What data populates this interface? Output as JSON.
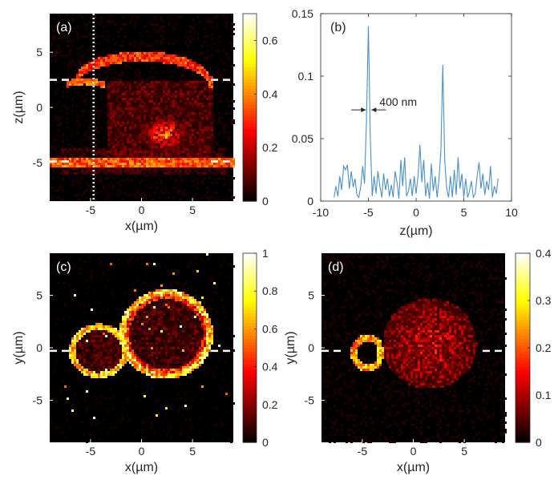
{
  "chart_data": [
    {
      "id": "a",
      "type": "heatmap",
      "panel_label": "(a)",
      "xlabel": "x(µm)",
      "ylabel": "z(µm)",
      "xlim": [
        -9,
        9
      ],
      "ylim": [
        -8.5,
        8.5
      ],
      "xticks": [
        -5,
        0,
        5
      ],
      "xtick_labels": [
        "-5",
        "0",
        "5"
      ],
      "yticks": [
        5,
        0,
        -5
      ],
      "ytick_labels": [
        "5",
        "0",
        "-5"
      ],
      "colormap": "hot",
      "clim": [
        0,
        0.7
      ],
      "colorbar_ticks": [
        0,
        0.2,
        0.4,
        0.6
      ],
      "colorbar_tick_labels": [
        "0",
        "0.2",
        "0.4",
        "0.6"
      ],
      "dashed_lines_z": [
        2.5,
        -4.9
      ],
      "dotted_line_x": -4.7,
      "background_color": "#000000",
      "line_color": "#ffffff"
    },
    {
      "id": "b",
      "type": "line",
      "panel_label": "(b)",
      "xlabel": "z(µm)",
      "ylabel": "",
      "xlim": [
        -10,
        10
      ],
      "ylim": [
        0,
        0.15
      ],
      "xticks": [
        -10,
        -5,
        0,
        5,
        10
      ],
      "xtick_labels": [
        "-10",
        "-5",
        "0",
        "5",
        "10"
      ],
      "yticks": [
        0,
        0.05,
        0.1,
        0.15
      ],
      "ytick_labels": [
        "0",
        "0.05",
        "0.1",
        "0.15"
      ],
      "color": "#4a90c9",
      "annotation": "400 nm",
      "annotation_x": -5.1,
      "annotation_y": 0.073,
      "series": [
        {
          "x": [
            -8.6,
            -8.4,
            -8.2,
            -8.0,
            -7.8,
            -7.6,
            -7.4,
            -7.2,
            -7.0,
            -6.8,
            -6.6,
            -6.4,
            -6.2,
            -6.0,
            -5.8,
            -5.6,
            -5.4,
            -5.2,
            -5.0,
            -4.8,
            -4.6,
            -4.4,
            -4.2,
            -4.0,
            -3.8,
            -3.6,
            -3.4,
            -3.2,
            -3.0,
            -2.8,
            -2.6,
            -2.4,
            -2.2,
            -2.0,
            -1.8,
            -1.6,
            -1.4,
            -1.2,
            -1.0,
            -0.8,
            -0.6,
            -0.4,
            -0.2,
            0.0,
            0.2,
            0.4,
            0.6,
            0.8,
            1.0,
            1.2,
            1.4,
            1.6,
            1.8,
            2.0,
            2.2,
            2.4,
            2.6,
            2.8,
            3.0,
            3.2,
            3.4,
            3.6,
            3.8,
            4.0,
            4.2,
            4.4,
            4.6,
            4.8,
            5.0,
            5.2,
            5.4,
            5.6,
            5.8,
            6.0,
            6.2,
            6.4,
            6.6,
            6.8,
            7.0,
            7.2,
            7.4,
            7.6,
            7.8,
            8.0,
            8.2,
            8.4,
            8.6
          ],
          "y": [
            0.003,
            0.012,
            0.004,
            0.02,
            0.009,
            0.028,
            0.025,
            0.029,
            0.01,
            0.024,
            0.011,
            0.018,
            0.005,
            0.003,
            0.012,
            0.028,
            0.014,
            0.065,
            0.14,
            0.05,
            0.004,
            0.02,
            0.006,
            0.024,
            0.012,
            0.003,
            0.022,
            0.009,
            0.018,
            0.004,
            0.013,
            0.003,
            0.024,
            0.015,
            0.002,
            0.033,
            0.012,
            0.035,
            0.004,
            0.008,
            0.018,
            0.004,
            0.02,
            0.006,
            0.02,
            0.045,
            0.015,
            0.033,
            0.004,
            0.015,
            0.002,
            0.03,
            0.008,
            0.02,
            0.003,
            0.018,
            0.04,
            0.109,
            0.033,
            0.01,
            0.003,
            0.02,
            0.003,
            0.025,
            0.005,
            0.035,
            0.01,
            0.022,
            0.003,
            0.018,
            0.003,
            0.008,
            0.016,
            0.003,
            0.006,
            0.02,
            0.031,
            0.01,
            0.022,
            0.005,
            0.016,
            0.009,
            0.028,
            0.003,
            0.012,
            0.006,
            0.018
          ]
        }
      ]
    },
    {
      "id": "c",
      "type": "heatmap",
      "panel_label": "(c)",
      "xlabel": "x(µm)",
      "ylabel": "y(µm)",
      "xlim": [
        -9,
        9
      ],
      "ylim": [
        -9,
        9
      ],
      "xticks": [
        -5,
        0,
        5
      ],
      "xtick_labels": [
        "-5",
        "0",
        "5"
      ],
      "yticks": [
        5,
        0,
        -5
      ],
      "ytick_labels": [
        "5",
        "0",
        "-5"
      ],
      "colormap": "hot",
      "clim": [
        0,
        1
      ],
      "colorbar_ticks": [
        0,
        0.2,
        0.4,
        0.6,
        0.8,
        1
      ],
      "colorbar_tick_labels": [
        "0",
        "0.2",
        "0.4",
        "0.6",
        "0.8",
        "1"
      ],
      "dashed_lines_y": [
        -0.3
      ],
      "background_color": "#000000",
      "line_color": "#ffffff"
    },
    {
      "id": "d",
      "type": "heatmap",
      "panel_label": "(d)",
      "xlabel": "x(µm)",
      "ylabel": "y(µm)",
      "xlim": [
        -9,
        9
      ],
      "ylim": [
        -9,
        9
      ],
      "xticks": [
        -5,
        0,
        5
      ],
      "xtick_labels": [
        "-5",
        "0",
        "5"
      ],
      "yticks": [
        5,
        0,
        -5
      ],
      "ytick_labels": [
        "5",
        "0",
        "-5"
      ],
      "colormap": "hot",
      "clim": [
        0,
        0.4
      ],
      "colorbar_ticks": [
        0,
        0.1,
        0.2,
        0.3,
        0.4
      ],
      "colorbar_tick_labels": [
        "0",
        "0.1",
        "0.2",
        "0.3",
        "0.4"
      ],
      "dashed_lines_y": [
        -0.3
      ],
      "background_color": "#000000",
      "line_color": "#ffffff"
    }
  ]
}
